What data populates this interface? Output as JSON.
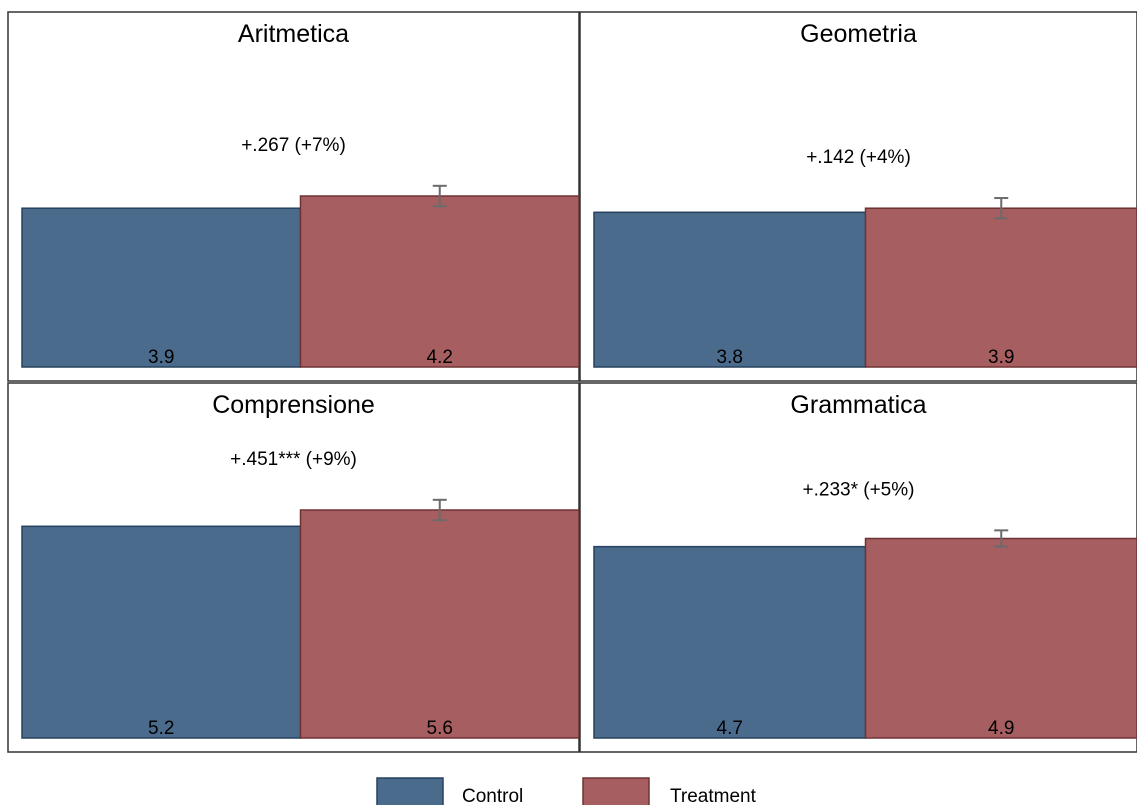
{
  "colors": {
    "control": "#4A6B8C",
    "treatment": "#A65E60",
    "bar_edge_control": "#27425E",
    "bar_edge_treatment": "#6E3335",
    "panel_border": "#333333",
    "error_bar": "#6b6b6b"
  },
  "legend": {
    "position": "bottom",
    "items": [
      {
        "label": "Control",
        "color": "#4A6B8C"
      },
      {
        "label": "Treatment",
        "color": "#A65E60"
      }
    ]
  },
  "chart_data": [
    {
      "type": "bar",
      "title": "Aritmetica",
      "categories": [
        "Control",
        "Treatment"
      ],
      "values": [
        3.9,
        4.2
      ],
      "value_labels": [
        "3.9",
        "4.2"
      ],
      "error_bar": {
        "series": "Treatment",
        "low": 3.95,
        "high": 4.45
      },
      "annotation": "+.267  (+7%)",
      "ylim": [
        0,
        7
      ]
    },
    {
      "type": "bar",
      "title": "Geometria",
      "categories": [
        "Control",
        "Treatment"
      ],
      "values": [
        3.8,
        3.9
      ],
      "value_labels": [
        "3.8",
        "3.9"
      ],
      "error_bar": {
        "series": "Treatment",
        "low": 3.65,
        "high": 4.15
      },
      "annotation": "+.142  (+4%)",
      "ylim": [
        0,
        7
      ]
    },
    {
      "type": "bar",
      "title": "Comprensione",
      "categories": [
        "Control",
        "Treatment"
      ],
      "values": [
        5.2,
        5.6
      ],
      "value_labels": [
        "5.2",
        "5.6"
      ],
      "error_bar": {
        "series": "Treatment",
        "low": 5.35,
        "high": 5.85
      },
      "annotation": "+.451***  (+9%)",
      "ylim": [
        0,
        7
      ]
    },
    {
      "type": "bar",
      "title": "Grammatica",
      "categories": [
        "Control",
        "Treatment"
      ],
      "values": [
        4.7,
        4.9
      ],
      "value_labels": [
        "4.7",
        "4.9"
      ],
      "error_bar": {
        "series": "Treatment",
        "low": 4.7,
        "high": 5.1
      },
      "annotation": "+.233* (+5%)",
      "ylim": [
        0,
        7
      ]
    }
  ]
}
